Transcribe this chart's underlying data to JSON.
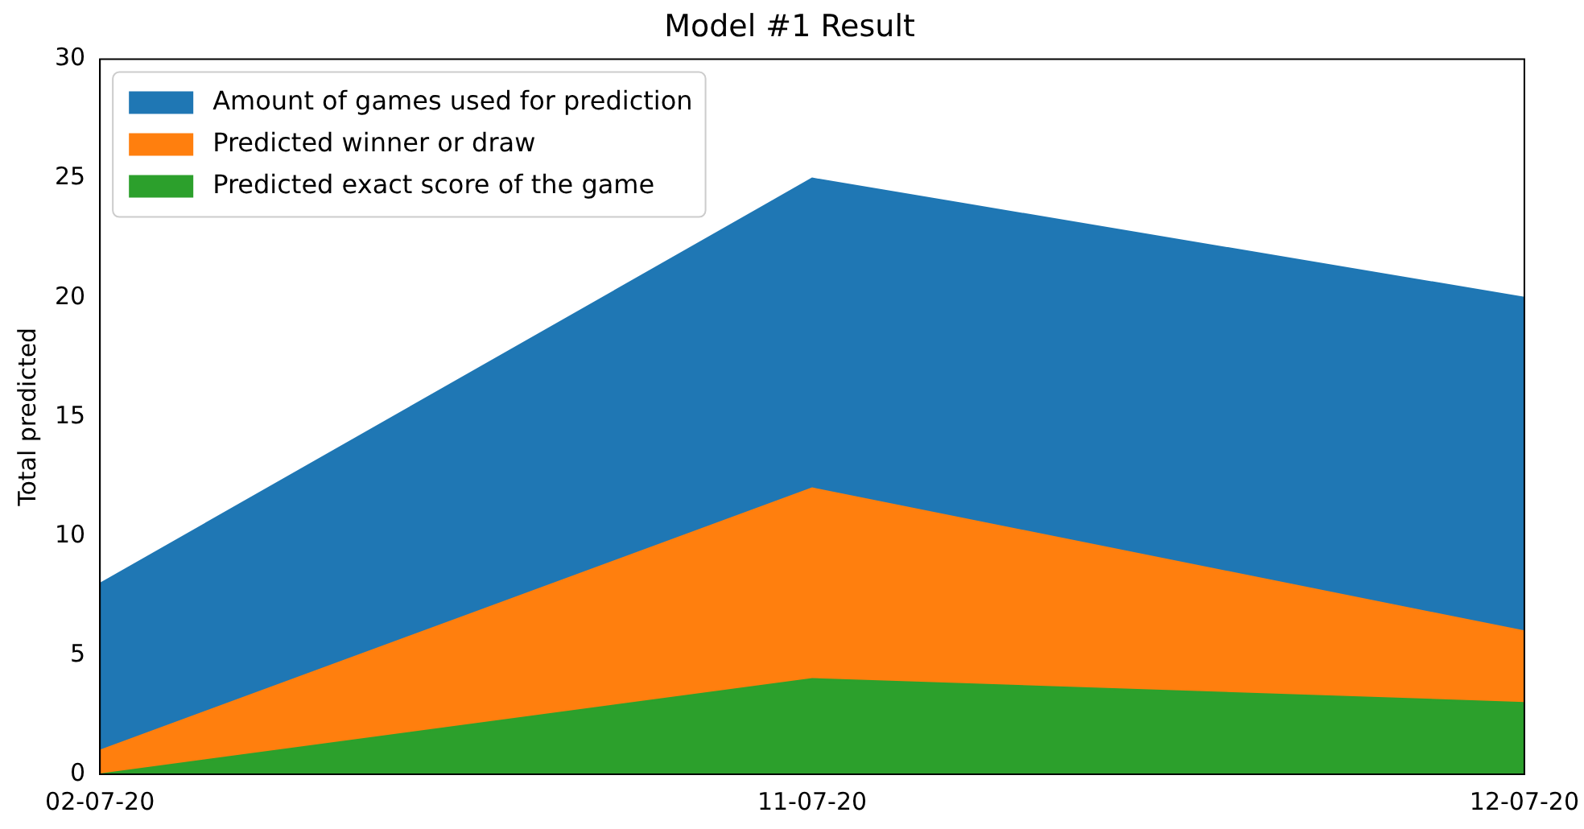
{
  "chart_data": {
    "type": "area",
    "title": "Model #1 Result",
    "ylabel": "Total predicted",
    "categories": [
      "02-07-20",
      "11-07-20",
      "12-07-20"
    ],
    "series": [
      {
        "name": "Amount of games used for prediction",
        "color": "#1f77b4",
        "values": [
          8,
          25,
          20
        ]
      },
      {
        "name": "Predicted winner or draw",
        "color": "#ff7f0e",
        "values": [
          1,
          12,
          6
        ]
      },
      {
        "name": "Predicted exact score of the game",
        "color": "#2ca02c",
        "values": [
          0,
          4,
          3
        ]
      }
    ],
    "ylim": [
      0,
      30
    ],
    "yticks": [
      0,
      5,
      10,
      15,
      20,
      25,
      30
    ],
    "grid": false,
    "legend": "top left"
  }
}
